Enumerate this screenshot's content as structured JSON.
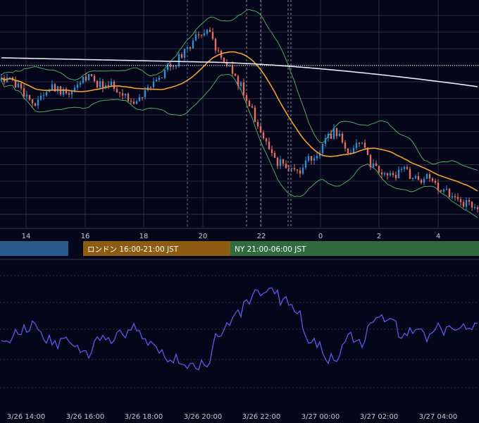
{
  "chart_data": [
    {
      "type": "candlestick",
      "panel": "price",
      "x_axis_ticks": [
        "14",
        "16",
        "18",
        "20",
        "22",
        "0",
        "2",
        "4"
      ],
      "sessions": [
        {
          "name": "tokyo",
          "label": "",
          "color": "#2a5a8c"
        },
        {
          "name": "london",
          "label": "ロンドン 16:00-21:00 JST",
          "color": "#8c5c12"
        },
        {
          "name": "newyork",
          "label": "NY 21:00-06:00 JST",
          "color": "#2f6b3c"
        }
      ],
      "overlays": [
        {
          "name": "SMA short",
          "color": "#f0a030"
        },
        {
          "name": "SMA long",
          "color": "#e8e8f0"
        },
        {
          "name": "Bollinger Bands",
          "color": "#4fa860"
        }
      ],
      "colors": {
        "up": "#2f8fd0",
        "down": "#e07060",
        "background": "#06061a",
        "grid": "#2a2a44"
      },
      "grid": true,
      "approx_close_series_level_0_to_100": [
        74,
        72,
        70,
        66,
        64,
        66,
        70,
        68,
        66,
        71,
        74,
        72,
        70,
        72,
        68,
        66,
        64,
        67,
        70,
        74,
        78,
        80,
        84,
        88,
        92,
        90,
        84,
        78,
        74,
        68,
        60,
        52,
        46,
        40,
        38,
        36,
        36,
        42,
        44,
        50,
        52,
        46,
        44,
        48,
        40,
        36,
        36,
        34,
        38,
        34,
        32,
        36,
        30,
        28,
        26,
        22,
        24,
        20
      ]
    },
    {
      "type": "line",
      "panel": "oscillator",
      "color": "#5a5ae8",
      "x_tick_labels": [
        "3/26 14:00",
        "3/26 16:00",
        "3/26 18:00",
        "3/26 20:00",
        "3/26 22:00",
        "3/27 00:00",
        "3/27 02:00",
        "3/27 04:00"
      ],
      "grid": true
    }
  ]
}
